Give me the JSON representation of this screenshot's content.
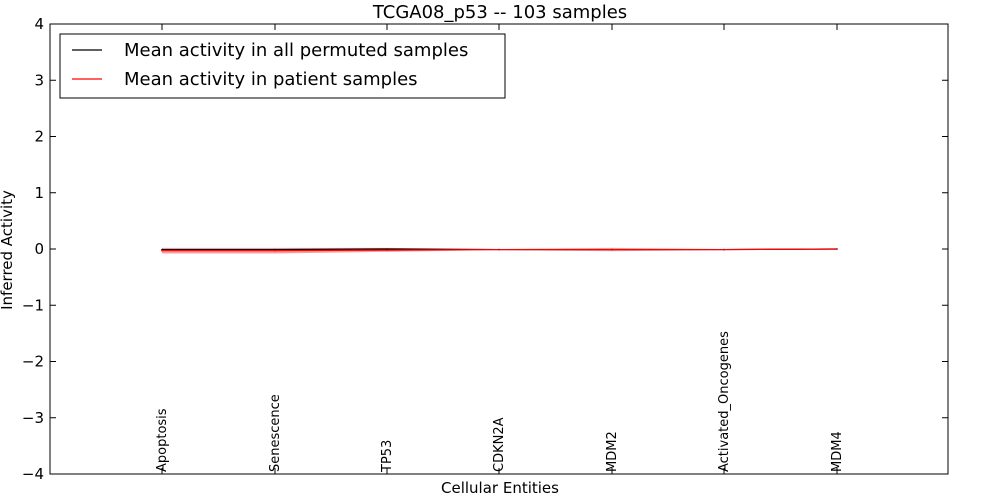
{
  "chart_data": {
    "type": "line",
    "title": "TCGA08_p53 -- 103 samples",
    "xlabel": "Cellular Entities",
    "ylabel": "Inferred Activity",
    "ylim": [
      -4,
      4
    ],
    "yticks": [
      4,
      3,
      2,
      1,
      0,
      -1,
      -2,
      -3,
      -4
    ],
    "ytick_labels": [
      "4",
      "3",
      "2",
      "1",
      "0",
      "−1",
      "−2",
      "−3",
      "−4"
    ],
    "categories": [
      "Apoptosis",
      "Senescence",
      "TP53",
      "CDKN2A",
      "MDM2",
      "Activated_Oncogenes",
      "MDM4"
    ],
    "grid": false,
    "legend_position": "top-left",
    "series": [
      {
        "name": "Mean activity in all permuted samples",
        "color": "#000000",
        "values": [
          -0.01,
          -0.01,
          0.0,
          -0.01,
          -0.01,
          -0.01,
          0.0
        ],
        "band_low": [
          -0.02,
          -0.02,
          -0.01,
          -0.015,
          -0.015,
          -0.01,
          -0.005
        ],
        "band_high": [
          0.005,
          0.005,
          0.01,
          -0.005,
          -0.005,
          -0.005,
          0.005
        ]
      },
      {
        "name": "Mean activity in patient samples",
        "color": "#ff0000",
        "band_color": "#f08080",
        "values": [
          -0.03,
          -0.03,
          -0.02,
          -0.01,
          -0.01,
          -0.01,
          0.0
        ],
        "band_low": [
          -0.08,
          -0.08,
          -0.05,
          -0.02,
          -0.04,
          -0.02,
          -0.01
        ],
        "band_high": [
          0.02,
          0.02,
          0.02,
          0.0,
          0.02,
          0.0,
          0.01
        ]
      }
    ]
  }
}
